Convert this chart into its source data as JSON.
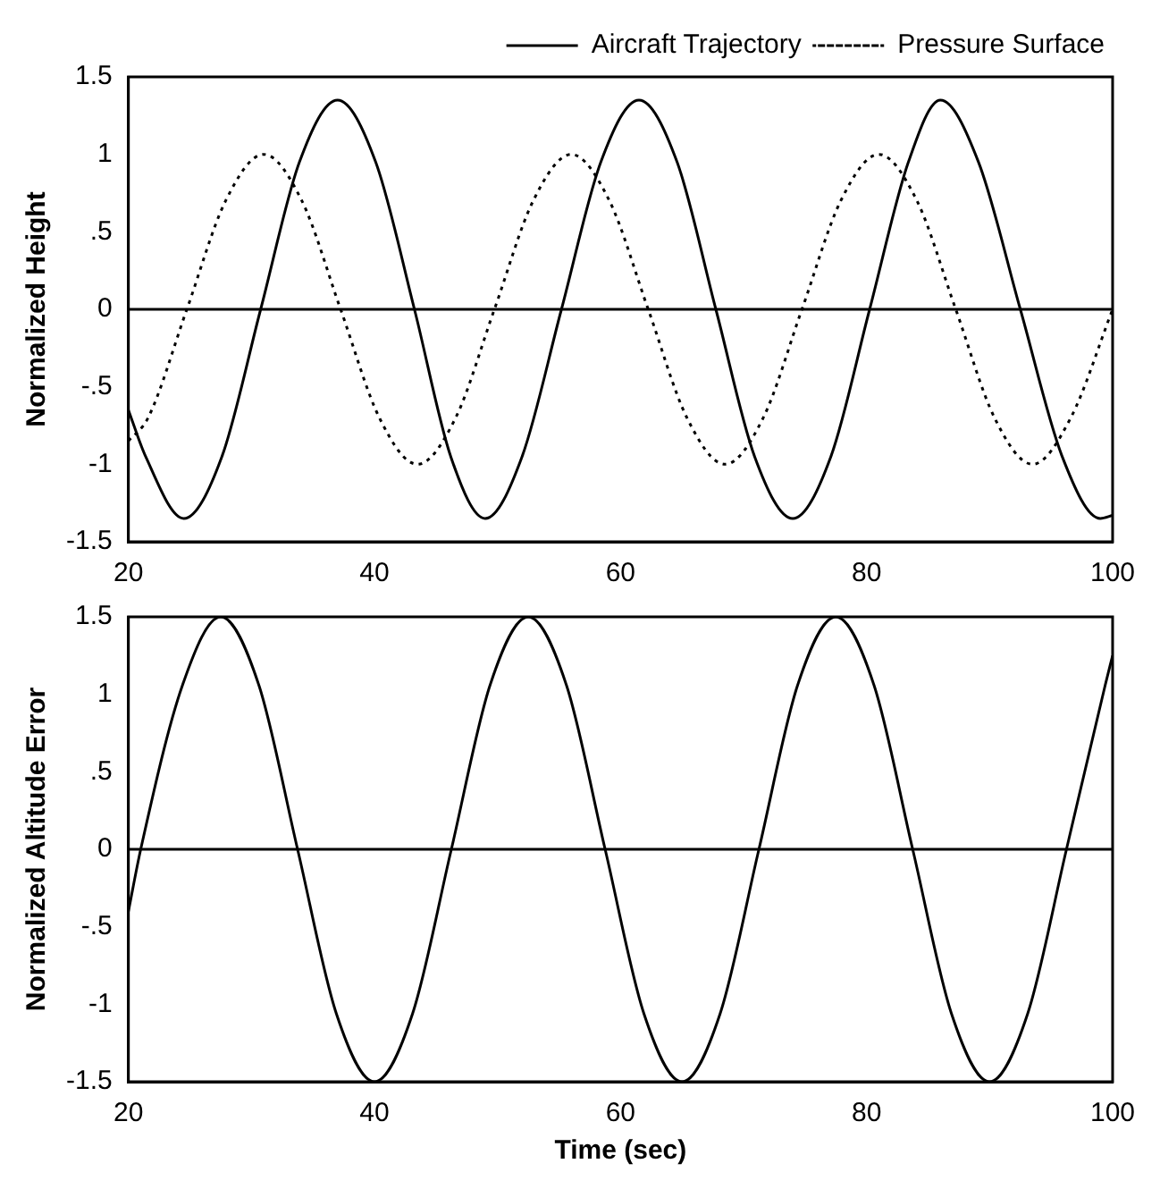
{
  "chart_data": [
    {
      "type": "line",
      "ylabel": "Normalized Height",
      "xlim": [
        20,
        100
      ],
      "xticks": [
        20,
        40,
        60,
        80,
        100
      ],
      "ylim": [
        -1.5,
        1.5
      ],
      "yticks": [
        -1.5,
        {
          "value": -1,
          "label": "-1"
        },
        {
          "value": -0.5,
          "label": "-.5"
        },
        0,
        {
          "value": 0.5,
          "label": ".5"
        },
        1,
        1.5
      ],
      "grid": false,
      "legend": "top right",
      "marker": "none",
      "ref_lines": [
        {
          "axis": "y",
          "value": 0,
          "color": "#000000",
          "line_style": "solid"
        }
      ],
      "series": [
        {
          "name": "Aircraft Trajectory",
          "color": "#000000",
          "line_style": "solid",
          "x": [
            20,
            21.4,
            24.5,
            27.6,
            30.75,
            33.9,
            37,
            40.1,
            43.25,
            46.2,
            49,
            52,
            55.2,
            58.4,
            61.5,
            64.6,
            67.75,
            70.9,
            74,
            77.1,
            80.25,
            83.4,
            86,
            89.1,
            92.5,
            95.9,
            99,
            100
          ],
          "values": [
            -0.65,
            -0.95,
            -1.35,
            -0.95,
            0,
            0.95,
            1.35,
            0.95,
            0,
            -0.95,
            -1.35,
            -0.95,
            0,
            0.95,
            1.35,
            0.95,
            0,
            -0.95,
            -1.35,
            -0.95,
            0,
            0.95,
            1.35,
            0.95,
            0,
            -0.95,
            -1.35,
            -1.33
          ]
        },
        {
          "name": "Pressure Surface",
          "color": "#000000",
          "line_style": "dotted",
          "x": [
            20,
            21.6,
            24.75,
            27.9,
            31,
            34.1,
            37.25,
            40.4,
            43.5,
            46.6,
            49.75,
            52.9,
            56,
            59.1,
            62.25,
            65.4,
            68.5,
            71.6,
            74.75,
            77.9,
            81,
            84.1,
            87.25,
            90.4,
            93.5,
            96.6,
            100
          ],
          "values": [
            -0.85,
            -0.7,
            0,
            0.7,
            1,
            0.7,
            0,
            -0.7,
            -1,
            -0.7,
            0,
            0.7,
            1,
            0.7,
            0,
            -0.7,
            -1,
            -0.7,
            0,
            0.7,
            1,
            0.7,
            0,
            -0.7,
            -1,
            -0.7,
            0
          ]
        }
      ]
    },
    {
      "type": "line",
      "xlabel": "Time (sec)",
      "ylabel": "Normalized Altitude Error",
      "xlim": [
        20,
        100
      ],
      "xticks": [
        20,
        40,
        60,
        80,
        100
      ],
      "ylim": [
        -1.5,
        1.5
      ],
      "yticks": [
        -1.5,
        {
          "value": -1,
          "label": "-1"
        },
        {
          "value": -0.5,
          "label": "-.5"
        },
        0,
        {
          "value": 0.5,
          "label": ".5"
        },
        1,
        1.5
      ],
      "grid": false,
      "legend": false,
      "marker": "none",
      "ref_lines": [
        {
          "axis": "y",
          "value": 0,
          "color": "#000000",
          "line_style": "solid"
        }
      ],
      "series": [
        {
          "color": "#000000",
          "line_style": "solid",
          "x": [
            20,
            21,
            24.4,
            27.5,
            30.6,
            33.75,
            36.9,
            40,
            43.1,
            46.25,
            49.4,
            52.5,
            55.6,
            58.75,
            61.9,
            65,
            68.1,
            71.25,
            74.4,
            77.5,
            80.6,
            83.75,
            86.9,
            90,
            93.1,
            96.25,
            99.4,
            100
          ],
          "values": [
            -0.4,
            0,
            1.06,
            1.5,
            1.06,
            0,
            -1.06,
            -1.5,
            -1.06,
            0,
            1.06,
            1.5,
            1.06,
            0,
            -1.06,
            -1.5,
            -1.06,
            0,
            1.06,
            1.5,
            1.06,
            0,
            -1.06,
            -1.5,
            -1.06,
            0,
            1.06,
            1.25
          ]
        }
      ]
    }
  ]
}
